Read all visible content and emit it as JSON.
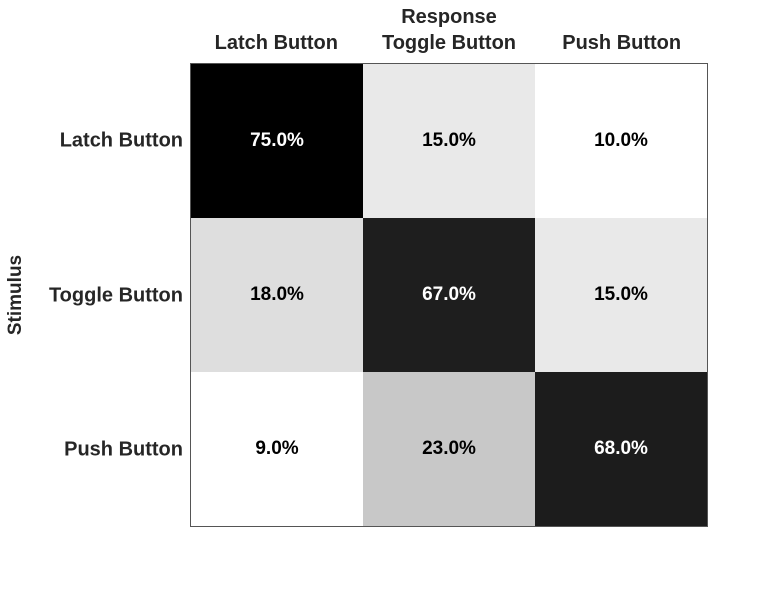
{
  "title": "Response",
  "ylabel": "Stimulus",
  "col_headers": [
    "Latch Button",
    "Toggle Button",
    "Push Button"
  ],
  "row_labels": [
    "Latch Button",
    "Toggle Button",
    "Push Button"
  ],
  "cells": [
    [
      {
        "label": "75.0%",
        "bg": "#000000",
        "fg": "#ffffff"
      },
      {
        "label": "15.0%",
        "bg": "#e9e9e9",
        "fg": "#000000"
      },
      {
        "label": "10.0%",
        "bg": "#ffffff",
        "fg": "#000000"
      }
    ],
    [
      {
        "label": "18.0%",
        "bg": "#dedede",
        "fg": "#000000"
      },
      {
        "label": "67.0%",
        "bg": "#1e1e1e",
        "fg": "#ffffff"
      },
      {
        "label": "15.0%",
        "bg": "#e9e9e9",
        "fg": "#000000"
      }
    ],
    [
      {
        "label": "9.0%",
        "bg": "#ffffff",
        "fg": "#000000"
      },
      {
        "label": "23.0%",
        "bg": "#c8c8c8",
        "fg": "#000000"
      },
      {
        "label": "68.0%",
        "bg": "#1c1c1c",
        "fg": "#ffffff"
      }
    ]
  ],
  "chart_data": {
    "type": "heatmap",
    "title": "Response",
    "xlabel": "Response",
    "ylabel": "Stimulus",
    "x_categories": [
      "Latch Button",
      "Toggle Button",
      "Push Button"
    ],
    "y_categories": [
      "Latch Button",
      "Toggle Button",
      "Push Button"
    ],
    "values": [
      [
        75.0,
        15.0,
        10.0
      ],
      [
        18.0,
        67.0,
        15.0
      ],
      [
        9.0,
        23.0,
        68.0
      ]
    ],
    "value_unit": "%",
    "colormap": "grayscale, higher value = darker",
    "legend": "none",
    "grid": "off"
  }
}
